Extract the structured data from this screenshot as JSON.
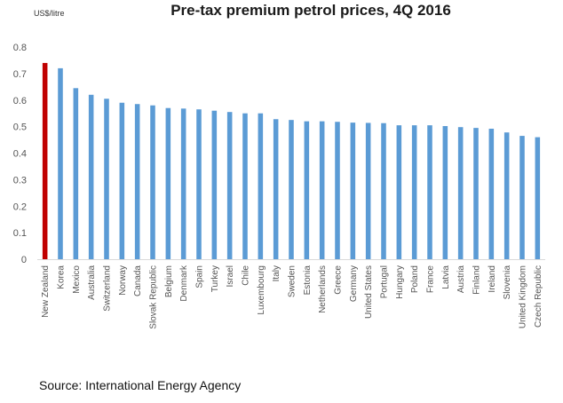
{
  "chart_data": {
    "type": "bar",
    "title": "Pre-tax premium petrol prices, 4Q 2016",
    "ylabel": "US$/litre",
    "xlabel": "",
    "ylim": [
      0,
      0.8
    ],
    "yticks": [
      "0",
      "0.1",
      "0.2",
      "0.3",
      "0.4",
      "0.5",
      "0.6",
      "0.7",
      "0.8"
    ],
    "grid": false,
    "categories": [
      "New Zealand",
      "Korea",
      "Mexico",
      "Australia",
      "Switzerland",
      "Norway",
      "Canada",
      "Slovak Republic",
      "Belgium",
      "Denmark",
      "Spain",
      "Turkey",
      "Israel",
      "Chile",
      "Luxembourg",
      "Italy",
      "Sweden",
      "Estonia",
      "Netherlands",
      "Greece",
      "Germany",
      "United States",
      "Portugal",
      "Hungary",
      "Poland",
      "France",
      "Latvia",
      "Austria",
      "Finland",
      "Ireland",
      "Slovenia",
      "United Kingdom",
      "Czech Republic"
    ],
    "values": [
      0.74,
      0.72,
      0.645,
      0.62,
      0.605,
      0.59,
      0.585,
      0.58,
      0.57,
      0.568,
      0.565,
      0.56,
      0.555,
      0.55,
      0.55,
      0.528,
      0.525,
      0.52,
      0.52,
      0.518,
      0.515,
      0.514,
      0.513,
      0.505,
      0.505,
      0.505,
      0.502,
      0.498,
      0.495,
      0.492,
      0.478,
      0.465,
      0.46
    ],
    "highlight_index": 0,
    "colors": {
      "bar": "#5b9bd5",
      "highlight": "#c00000",
      "axis": "#d9d9d9"
    }
  },
  "source_text": "Source: International Energy Agency"
}
